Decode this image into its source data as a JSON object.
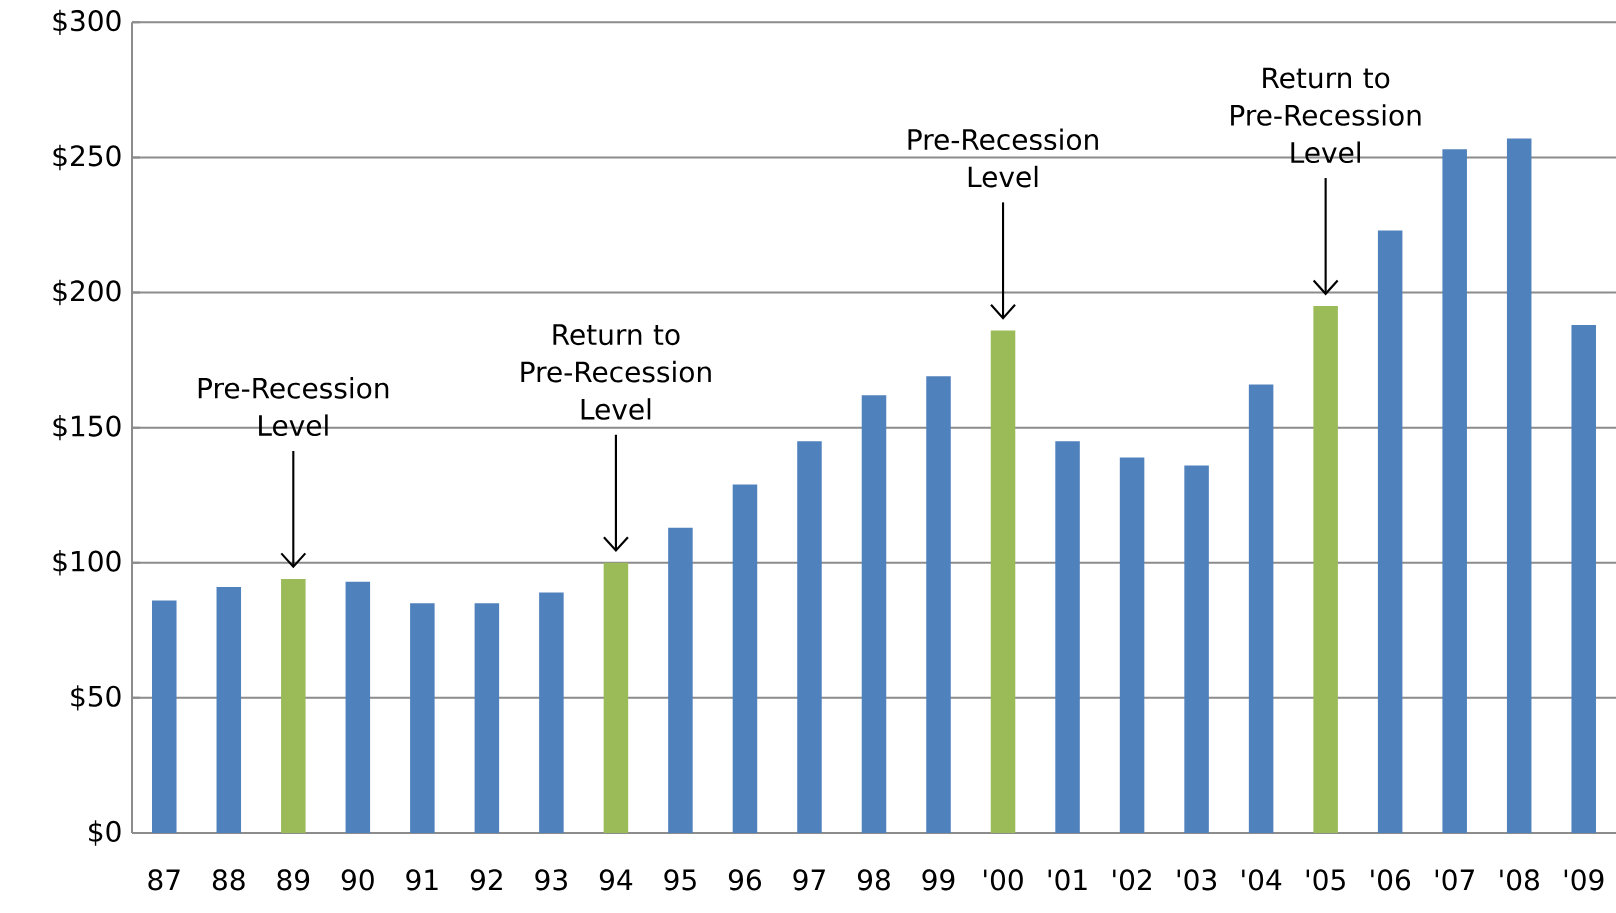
{
  "chart_data": {
    "type": "bar",
    "categories": [
      "87",
      "88",
      "89",
      "90",
      "91",
      "92",
      "93",
      "94",
      "95",
      "96",
      "97",
      "98",
      "99",
      "'00",
      "'01",
      "'02",
      "'03",
      "'04",
      "'05",
      "'06",
      "'07",
      "'08",
      "'09"
    ],
    "values": [
      86,
      91,
      94,
      93,
      85,
      85,
      89,
      100,
      113,
      129,
      145,
      162,
      169,
      186,
      145,
      139,
      136,
      166,
      195,
      223,
      253,
      257,
      188
    ],
    "colors": [
      "#4f81bd",
      "#4f81bd",
      "#9bbb59",
      "#4f81bd",
      "#4f81bd",
      "#4f81bd",
      "#4f81bd",
      "#9bbb59",
      "#4f81bd",
      "#4f81bd",
      "#4f81bd",
      "#4f81bd",
      "#4f81bd",
      "#9bbb59",
      "#4f81bd",
      "#4f81bd",
      "#4f81bd",
      "#4f81bd",
      "#9bbb59",
      "#4f81bd",
      "#4f81bd",
      "#4f81bd",
      "#4f81bd"
    ],
    "ylim": [
      0,
      300
    ],
    "yticks": [
      {
        "value": 0,
        "label": "$0"
      },
      {
        "value": 50,
        "label": "$50"
      },
      {
        "value": 100,
        "label": "$100"
      },
      {
        "value": 150,
        "label": "$150"
      },
      {
        "value": 200,
        "label": "$200"
      },
      {
        "value": 250,
        "label": "$250"
      },
      {
        "value": 300,
        "label": "$300"
      }
    ],
    "grid": "y",
    "annotations": [
      "Pre-Recession Level",
      "Return to Pre-Recession Level",
      "Pre-Recession Level",
      "Return to Pre-Recession Level"
    ]
  }
}
